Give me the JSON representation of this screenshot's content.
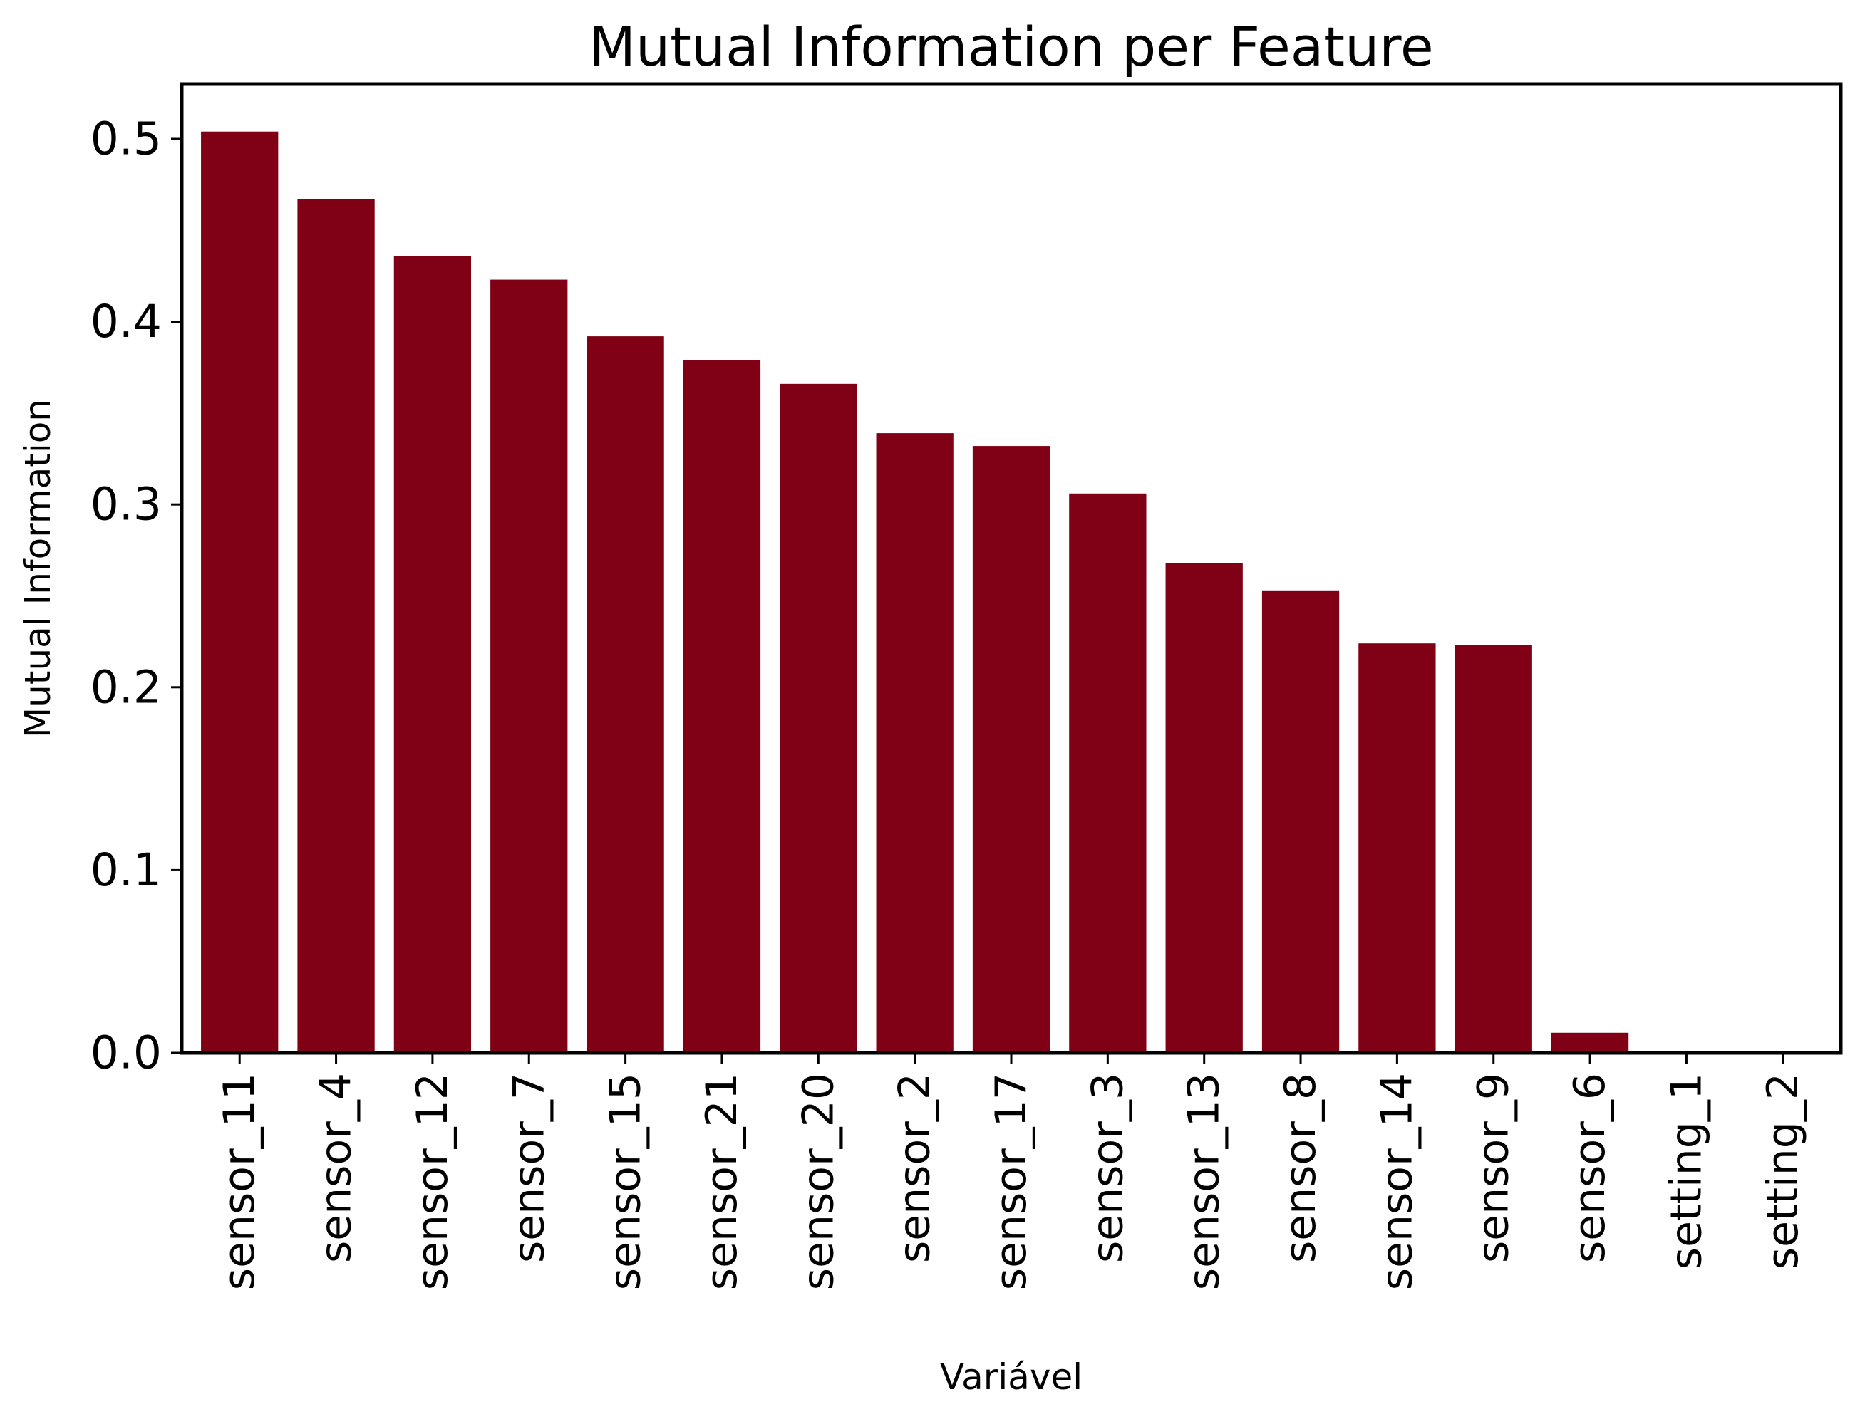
{
  "chart_data": {
    "type": "bar",
    "title": "Mutual Information per Feature",
    "xlabel": "Variável",
    "ylabel": "Mutual Information",
    "categories": [
      "sensor_11",
      "sensor_4",
      "sensor_12",
      "sensor_7",
      "sensor_15",
      "sensor_21",
      "sensor_20",
      "sensor_2",
      "sensor_17",
      "sensor_3",
      "sensor_13",
      "sensor_8",
      "sensor_14",
      "sensor_9",
      "sensor_6",
      "setting_1",
      "setting_2"
    ],
    "values": [
      0.504,
      0.467,
      0.436,
      0.423,
      0.392,
      0.379,
      0.366,
      0.339,
      0.332,
      0.306,
      0.268,
      0.253,
      0.224,
      0.223,
      0.011,
      0.0,
      0.0
    ],
    "ylim": [
      0,
      0.53
    ],
    "yticks": [
      0.0,
      0.1,
      0.2,
      0.3,
      0.4,
      0.5
    ],
    "ytick_labels": [
      "0.0",
      "0.1",
      "0.2",
      "0.3",
      "0.4",
      "0.5"
    ],
    "grid": false,
    "legend": "none",
    "bar_color": "#800015"
  }
}
